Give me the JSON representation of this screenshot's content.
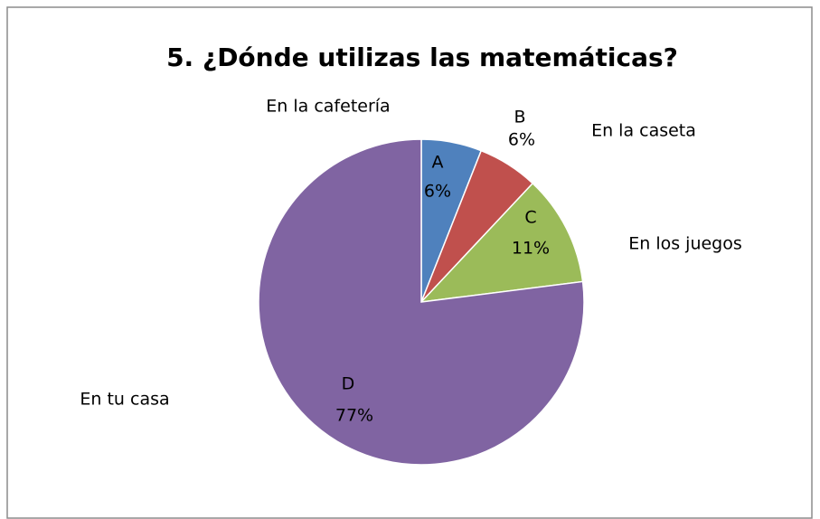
{
  "chart_data": {
    "type": "pie",
    "title": "5. ¿Dónde utilizas las matemáticas?",
    "categories": [
      "A",
      "B",
      "C",
      "D"
    ],
    "values": [
      6,
      6,
      11,
      77
    ],
    "value_labels": [
      "6%",
      "6%",
      "11%",
      "77%"
    ],
    "colors": [
      "#4f81bd",
      "#c0504d",
      "#9bbb59",
      "#8064a2"
    ],
    "annotations": [
      "En la cafetería",
      "En la caseta",
      "En los juegos",
      "En tu casa"
    ]
  }
}
